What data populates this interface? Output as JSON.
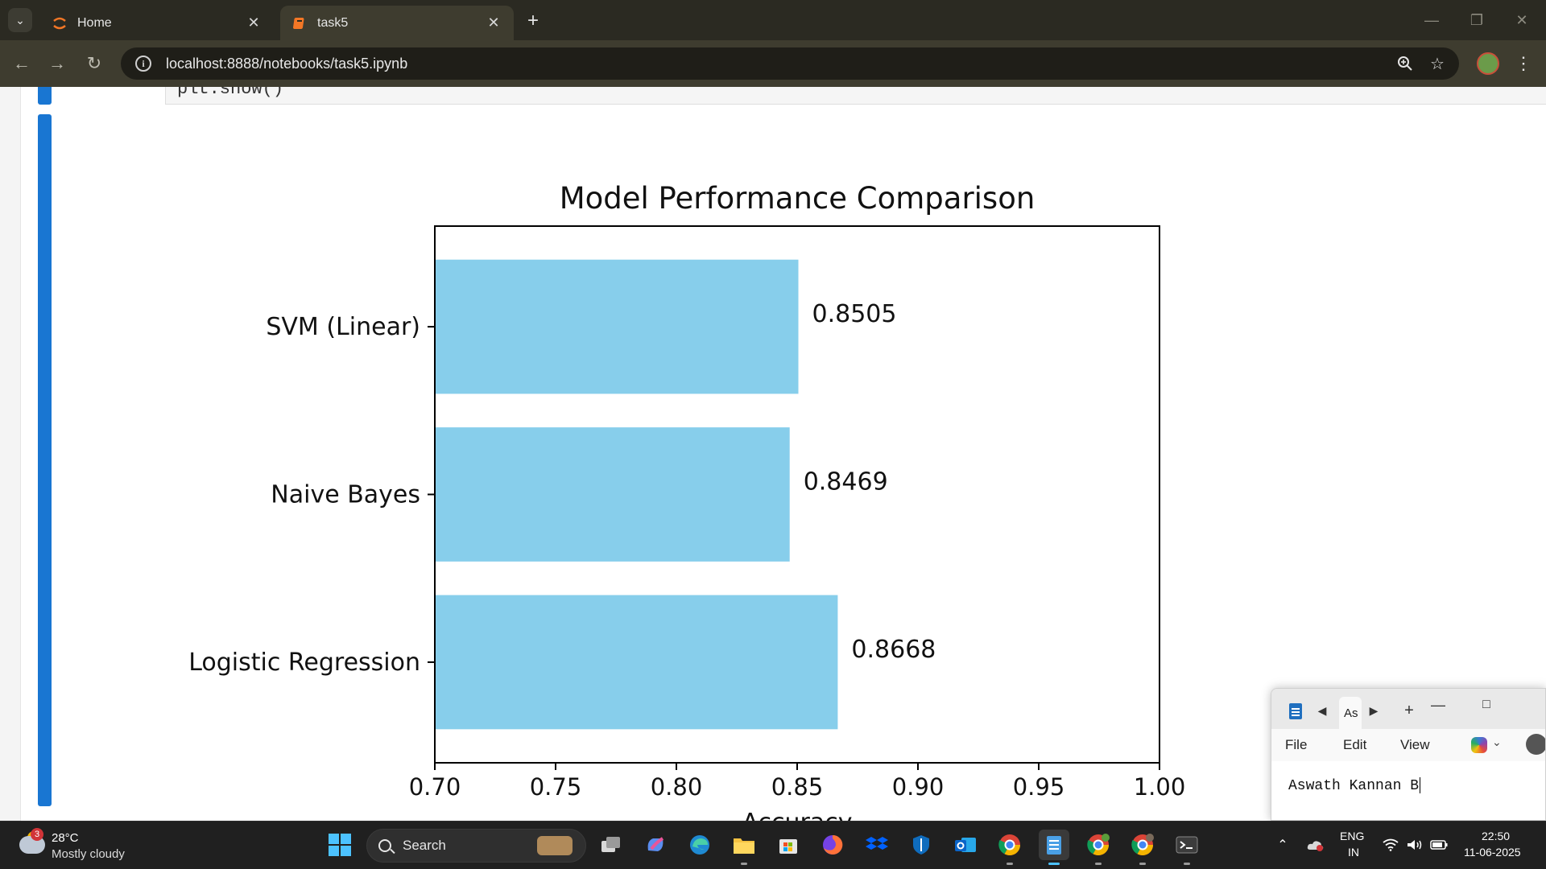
{
  "browser": {
    "tabs": [
      {
        "title": "Home",
        "icon": "jupyter-icon"
      },
      {
        "title": "task5",
        "icon": "notebook-icon"
      }
    ],
    "active_tab": 1,
    "url": "localhost:8888/notebooks/task5.ipynb",
    "theme_color": "#3e3c2f"
  },
  "notebook": {
    "code_remnant": "plt.show()",
    "cell_marker_color": "#1976d2"
  },
  "chart_data": {
    "type": "bar",
    "orientation": "horizontal",
    "title": "Model Performance Comparison",
    "xlabel": "Accuracy",
    "ylabel": "",
    "categories": [
      "Logistic Regression",
      "Naive Bayes",
      "SVM (Linear)"
    ],
    "values": [
      0.8668,
      0.8469,
      0.8505
    ],
    "value_labels": [
      "0.8668",
      "0.8469",
      "0.8505"
    ],
    "xlim": [
      0.7,
      1.0
    ],
    "xticks": [
      "0.70",
      "0.75",
      "0.80",
      "0.85",
      "0.90",
      "0.95",
      "1.00"
    ],
    "bar_color": "#87ceeb",
    "grid": false
  },
  "notepad": {
    "tab_label": "As",
    "menu": [
      "File",
      "Edit",
      "View"
    ],
    "text": "Aswath Kannan B"
  },
  "taskbar": {
    "weather": {
      "badge": "3",
      "temp": "28°C",
      "desc": "Mostly cloudy"
    },
    "search_label": "Search",
    "apps": [
      "task-view-icon",
      "copilot-icon",
      "edge-icon",
      "file-explorer-icon",
      "microsoft-store-icon",
      "firefox-icon",
      "dropbox-icon",
      "defender-icon",
      "outlook-icon",
      "chrome-icon",
      "notepad-icon",
      "chrome-profile-a-icon",
      "chrome-profile-b-icon",
      "terminal-icon"
    ],
    "tray": {
      "lang_top": "ENG",
      "lang_bottom": "IN",
      "time": "22:50",
      "date": "11-06-2025"
    }
  }
}
